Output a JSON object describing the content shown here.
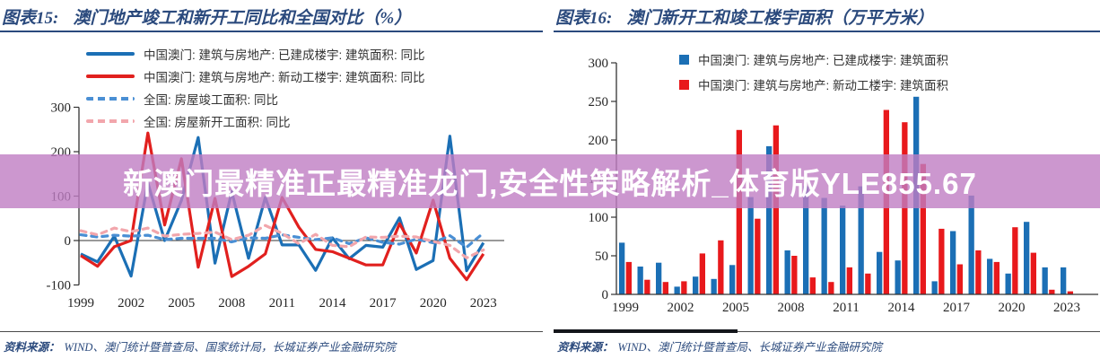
{
  "banner": {
    "text": "新澳门最精准正最精准龙门,安全性策略解析_体育版YLE855.67"
  },
  "figures": [
    {
      "label": "图表15:",
      "title": "澳门地产竣工和新开工同比和全国对比（%）",
      "source_label": "资料来源：",
      "source": "WIND、澳门统计暨普查局、国家统计局，长城证券产业金融研究院"
    },
    {
      "label": "图表16:",
      "title": "澳门新开工和竣工楼宇面积（万平方米）",
      "source_label": "资料来源：",
      "source": "WIND、澳门统计暨普查局、长城证券产业金融研究院"
    }
  ],
  "colors": {
    "macau_blue": "#1B6FB5",
    "macau_red": "#E1201E",
    "national_blue_dashed": "#4A8FD4",
    "national_pink_dashed": "#F2A6AC",
    "heading_navy": "#2B4A7D",
    "banner_purple": "#BF7DC3",
    "axis_gray": "#333333"
  },
  "chart_data": [
    {
      "type": "line",
      "title": "澳门地产竣工和新开工同比和全国对比（%）",
      "unit": "%",
      "grid": false,
      "legend_position": "top-left",
      "ylim": [
        -100,
        300
      ],
      "yticks": [
        300,
        200,
        100,
        0,
        -100
      ],
      "x": [
        1999,
        2000,
        2001,
        2002,
        2003,
        2004,
        2005,
        2006,
        2007,
        2008,
        2009,
        2010,
        2011,
        2012,
        2013,
        2014,
        2015,
        2016,
        2017,
        2018,
        2019,
        2020,
        2021,
        2022,
        2023
      ],
      "x_ticks": [
        1999,
        2002,
        2005,
        2008,
        2011,
        2014,
        2017,
        2020,
        2023
      ],
      "series": [
        {
          "name": "中国澳门: 建筑与房地产: 已建成楼宇: 建筑面积: 同比",
          "style": "solid",
          "color": "#1B6FB5",
          "values": [
            -30,
            -48,
            10,
            -80,
            130,
            0,
            90,
            232,
            -51,
            110,
            -40,
            97,
            -10,
            -10,
            -67,
            6,
            -41,
            -11,
            -15,
            51,
            -65,
            -45,
            235,
            -68,
            -5
          ]
        },
        {
          "name": "中国澳门: 建筑与房地产: 新动工楼宇: 建筑面积: 同比",
          "style": "solid",
          "color": "#E1201E",
          "values": [
            -34,
            -58,
            -14,
            0,
            242,
            35,
            184,
            -60,
            95,
            -81,
            -58,
            -30,
            97,
            30,
            -20,
            -25,
            -40,
            -55,
            -55,
            38,
            -28,
            91,
            -40,
            -88,
            -30
          ]
        },
        {
          "name": "全国: 房屋竣工面积: 同比",
          "style": "dashed",
          "color": "#4A8FD4",
          "values": [
            13,
            8,
            12,
            10,
            12,
            2,
            5,
            5,
            5,
            -3,
            6,
            5,
            13,
            7,
            2,
            6,
            -7,
            6,
            -4,
            -8,
            3,
            -5,
            11,
            -15,
            17
          ]
        },
        {
          "name": "全国: 房屋新开工面积: 同比",
          "style": "dashed",
          "color": "#F2A6AC",
          "values": [
            22,
            13,
            28,
            20,
            28,
            10,
            14,
            16,
            19,
            2,
            12,
            34,
            16,
            -7,
            14,
            -11,
            -14,
            8,
            7,
            10,
            8,
            -2,
            -11,
            -39,
            -21
          ]
        }
      ]
    },
    {
      "type": "bar",
      "title": "澳门新开工和竣工楼宇面积（万平方米）",
      "unit": "万平方米",
      "grid": false,
      "legend_position": "top-right",
      "ylim": [
        0,
        300
      ],
      "yticks": [
        300,
        250,
        200,
        150,
        100,
        50,
        0
      ],
      "categories": [
        1999,
        2000,
        2001,
        2002,
        2003,
        2004,
        2005,
        2006,
        2007,
        2008,
        2009,
        2010,
        2011,
        2012,
        2013,
        2014,
        2015,
        2016,
        2017,
        2018,
        2019,
        2020,
        2021,
        2022,
        2023
      ],
      "x_ticks": [
        1999,
        2002,
        2005,
        2008,
        2011,
        2014,
        2017,
        2020,
        2023
      ],
      "series": [
        {
          "name": "中国澳门: 建筑与房地产: 已建成楼宇: 建筑面积",
          "color": "#1B6FB5",
          "values": [
            67,
            36,
            41,
            10,
            23,
            20,
            38,
            126,
            192,
            57,
            140,
            125,
            115,
            140,
            55,
            44,
            256,
            17,
            82,
            128,
            46,
            27,
            94,
            35,
            35
          ]
        },
        {
          "name": "中国澳门: 建筑与房地产: 新动工楼宇: 建筑面积",
          "color": "#E8191C",
          "values": [
            42,
            19,
            16,
            17,
            53,
            70,
            213,
            98,
            219,
            50,
            22,
            16,
            35,
            27,
            239,
            223,
            169,
            85,
            39,
            57,
            42,
            87,
            54,
            6,
            4
          ]
        }
      ]
    }
  ]
}
